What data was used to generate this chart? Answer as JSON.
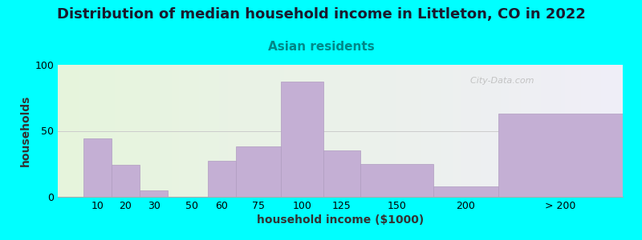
{
  "title": "Distribution of median household income in Littleton, CO in 2022",
  "subtitle": "Asian residents",
  "xlabel": "household income ($1000)",
  "ylabel": "households",
  "background_color": "#00FFFF",
  "plot_bg_left": "#e6f5dc",
  "plot_bg_right": "#f0eef8",
  "bar_color": "#c4afd4",
  "bar_edge_color": "#b09cc0",
  "watermark": "  City-Data.com",
  "ylim": [
    0,
    100
  ],
  "yticks": [
    0,
    50,
    100
  ],
  "tick_labels": [
    "10",
    "20",
    "30",
    "50",
    "60",
    "75",
    "100",
    "125",
    "150",
    "200",
    "> 200"
  ],
  "bar_heights": [
    44,
    24,
    5,
    0,
    27,
    38,
    87,
    35,
    25,
    8,
    63
  ],
  "bar_left_pct": [
    0.045,
    0.095,
    0.145,
    0.21,
    0.265,
    0.315,
    0.395,
    0.47,
    0.535,
    0.665,
    0.78
  ],
  "bar_right_pct": [
    0.095,
    0.145,
    0.195,
    0.265,
    0.315,
    0.395,
    0.47,
    0.535,
    0.665,
    0.78,
    1.005
  ],
  "tick_pct": [
    0.07,
    0.12,
    0.17,
    0.237,
    0.29,
    0.355,
    0.432,
    0.502,
    0.6,
    0.722,
    0.89
  ],
  "title_fontsize": 13,
  "subtitle_fontsize": 11,
  "axis_label_fontsize": 10,
  "tick_fontsize": 9
}
